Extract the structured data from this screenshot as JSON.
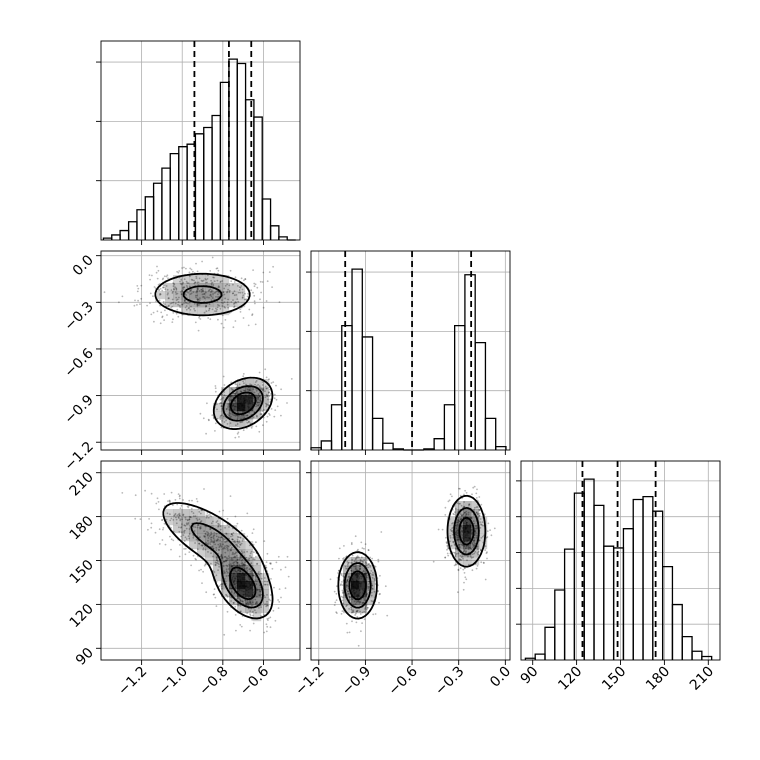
{
  "chart_data": {
    "type": "corner",
    "grid": true,
    "colors": {
      "line": "#000000",
      "grid": "#b0b0b0",
      "density": "#000000",
      "background": "#ffffff"
    },
    "quantile_lines": "dashed",
    "variables": [
      {
        "ticks": [
          "−1.2",
          "−1.0",
          "−0.8",
          "−0.6"
        ],
        "tick_values": [
          -1.2,
          -1.0,
          -0.8,
          -0.6
        ],
        "range": [
          -1.4,
          -0.42
        ]
      },
      {
        "ticks": [
          "−1.2",
          "−0.9",
          "−0.6",
          "−0.3",
          "0.0"
        ],
        "tick_values": [
          -1.2,
          -0.9,
          -0.6,
          -0.3,
          0.0
        ],
        "range": [
          -1.25,
          0.03
        ]
      },
      {
        "ticks": [
          "90",
          "120",
          "150",
          "180",
          "210"
        ],
        "tick_values": [
          90,
          120,
          150,
          180,
          210
        ],
        "range": [
          82,
          218
        ]
      }
    ],
    "histograms": [
      {
        "var": 0,
        "bin_edges": [
          -1.388,
          -1.347,
          -1.306,
          -1.264,
          -1.223,
          -1.182,
          -1.141,
          -1.1,
          -1.059,
          -1.017,
          -0.976,
          -0.935,
          -0.894,
          -0.853,
          -0.812,
          -0.77,
          -0.729,
          -0.688,
          -0.647,
          -0.606,
          -0.565,
          -0.524,
          -0.483,
          -0.441
        ],
        "counts": [
          0.6,
          1.6,
          3.0,
          5.8,
          9.6,
          13.7,
          18.0,
          22.8,
          27.4,
          29.6,
          30.4,
          33.7,
          35.7,
          39.5,
          50.0,
          57.4,
          56.0,
          44.5,
          39.0,
          13.0,
          4.5,
          1.0,
          0.0
        ],
        "quantiles": [
          -0.94,
          -0.77,
          -0.66
        ]
      },
      {
        "var": 1,
        "bin_edges": [
          -1.25,
          -1.184,
          -1.118,
          -1.052,
          -0.986,
          -0.92,
          -0.854,
          -0.788,
          -0.722,
          -0.656,
          -0.59,
          -0.524,
          -0.458,
          -0.392,
          -0.326,
          -0.26,
          -0.194,
          -0.128,
          -0.062,
          0.004
        ],
        "counts": [
          2,
          8,
          40,
          110,
          160,
          100,
          28,
          6,
          1,
          0,
          0,
          1,
          10,
          40,
          110,
          155,
          95,
          28,
          3
        ],
        "quantiles": [
          -1.03,
          -0.6,
          -0.22
        ]
      },
      {
        "var": 2,
        "bin_edges": [
          85,
          91.7,
          98.4,
          105.1,
          111.8,
          118.5,
          125.2,
          131.9,
          138.6,
          145.3,
          152,
          158.7,
          165.4,
          172.1,
          178.8,
          185.5,
          192.2,
          198.9,
          205.6,
          212.3
        ],
        "counts": [
          0.3,
          1.0,
          5.6,
          12.0,
          19.0,
          28.6,
          31.0,
          26.5,
          19.5,
          19.2,
          22.5,
          27.5,
          28.0,
          25.5,
          16.0,
          9.5,
          4.0,
          1.5,
          0.6
        ],
        "quantiles": [
          124,
          148,
          174
        ]
      }
    ],
    "density_2d": [
      {
        "x_var": 0,
        "y_var": 1,
        "modes": [
          {
            "x": -0.9,
            "y": -0.25,
            "sx": 0.14,
            "sy": 0.08,
            "rho": 0.0,
            "weight": 0.5
          },
          {
            "x": -0.7,
            "y": -0.95,
            "sx": 0.07,
            "sy": 0.08,
            "rho": 0.3,
            "weight": 0.5
          }
        ]
      },
      {
        "x_var": 0,
        "y_var": 2,
        "modes": [
          {
            "x": -0.86,
            "y": 166,
            "sx": 0.14,
            "sy": 14,
            "rho": -0.7,
            "weight": 0.5
          },
          {
            "x": -0.7,
            "y": 133,
            "sx": 0.07,
            "sy": 11,
            "rho": -0.45,
            "weight": 0.5
          }
        ]
      },
      {
        "x_var": 1,
        "y_var": 2,
        "modes": [
          {
            "x": -0.95,
            "y": 133,
            "sx": 0.06,
            "sy": 11,
            "rho": 0.0,
            "weight": 0.5
          },
          {
            "x": -0.25,
            "y": 170,
            "sx": 0.06,
            "sy": 12,
            "rho": 0.0,
            "weight": 0.5
          }
        ]
      }
    ]
  }
}
